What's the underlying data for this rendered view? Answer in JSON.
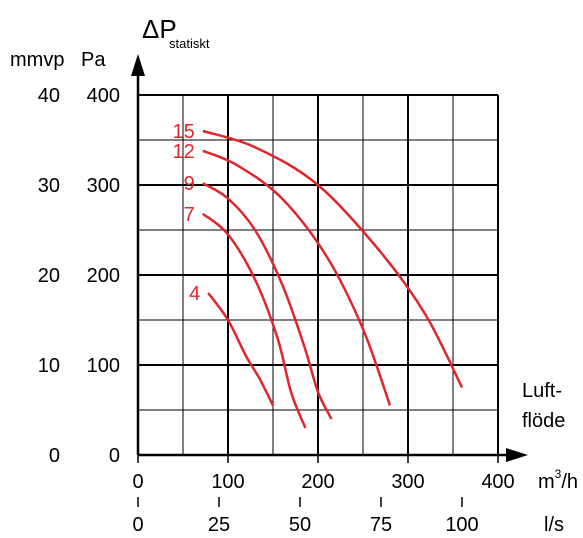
{
  "chart_data": {
    "type": "line",
    "y_axis": {
      "title": "ΔP",
      "title_sub": "statiskt",
      "left_unit": "mmvp",
      "right_unit": "Pa",
      "ticks_pa": [
        0,
        100,
        200,
        300,
        400
      ],
      "ticks_mmvp": [
        0,
        10,
        20,
        30,
        40
      ],
      "ylim": [
        0,
        400
      ],
      "minor_step": 50
    },
    "x_axis": {
      "label_line1": "Luft-",
      "label_line2": "flöde",
      "unit_m3h": "m³/h",
      "unit_m3h_base": "m",
      "unit_m3h_sup": "3",
      "unit_m3h_tail": "/h",
      "unit_ls": "l/s",
      "ticks_m3h": [
        0,
        100,
        200,
        300,
        400
      ],
      "ticks_ls": [
        0,
        25,
        50,
        75,
        100
      ],
      "xlim": [
        0,
        400
      ],
      "minor_step": 50
    },
    "grid": true,
    "series_color": "#e0262a",
    "series": [
      {
        "name": "4",
        "points": [
          [
            78,
            180
          ],
          [
            100,
            150
          ],
          [
            120,
            110
          ],
          [
            135,
            85
          ],
          [
            150,
            55
          ]
        ]
      },
      {
        "name": "7",
        "points": [
          [
            72,
            268
          ],
          [
            100,
            245
          ],
          [
            130,
            195
          ],
          [
            155,
            130
          ],
          [
            170,
            70
          ],
          [
            186,
            30
          ]
        ]
      },
      {
        "name": "9",
        "points": [
          [
            72,
            302
          ],
          [
            100,
            285
          ],
          [
            130,
            250
          ],
          [
            160,
            190
          ],
          [
            185,
            120
          ],
          [
            200,
            70
          ],
          [
            215,
            40
          ]
        ]
      },
      {
        "name": "12",
        "points": [
          [
            72,
            338
          ],
          [
            110,
            322
          ],
          [
            160,
            285
          ],
          [
            210,
            220
          ],
          [
            250,
            140
          ],
          [
            280,
            55
          ]
        ]
      },
      {
        "name": "15",
        "points": [
          [
            72,
            360
          ],
          [
            130,
            342
          ],
          [
            200,
            300
          ],
          [
            270,
            225
          ],
          [
            320,
            155
          ],
          [
            360,
            75
          ]
        ]
      }
    ]
  }
}
